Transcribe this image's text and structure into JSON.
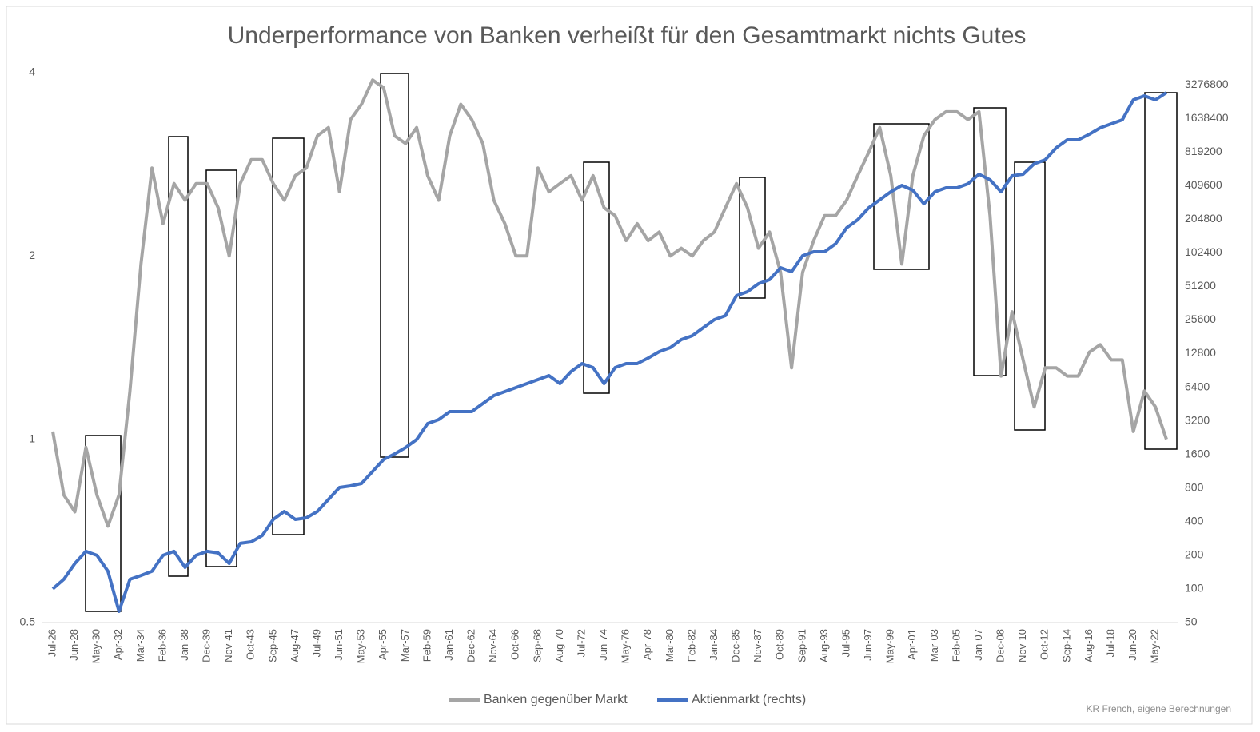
{
  "chart_data": {
    "type": "line",
    "title": "Underperformance von Banken verheißt für den Gesamtmarkt nichts Gutes",
    "source": "KR French, eigene Berechnungen",
    "log_scale": true,
    "grid": false,
    "categories": [
      "Jul-26",
      null,
      "Jun-28",
      null,
      "May-30",
      null,
      "Apr-32",
      null,
      "Mar-34",
      null,
      "Feb-36",
      null,
      "Jan-38",
      null,
      "Dec-39",
      null,
      "Nov-41",
      null,
      "Oct-43",
      null,
      "Sep-45",
      null,
      "Aug-47",
      null,
      "Jul-49",
      null,
      "Jun-51",
      null,
      "May-53",
      null,
      "Apr-55",
      null,
      "Mar-57",
      null,
      "Feb-59",
      null,
      "Jan-61",
      null,
      "Dec-62",
      null,
      "Nov-64",
      null,
      "Oct-66",
      null,
      "Sep-68",
      null,
      "Aug-70",
      null,
      "Jul-72",
      null,
      "Jun-74",
      null,
      "May-76",
      null,
      "Apr-78",
      null,
      "Mar-80",
      null,
      "Feb-82",
      null,
      "Jan-84",
      null,
      "Dec-85",
      null,
      "Nov-87",
      null,
      "Oct-89",
      null,
      "Sep-91",
      null,
      "Aug-93",
      null,
      "Jul-95",
      null,
      "Jun-97",
      null,
      "May-99",
      null,
      "Apr-01",
      null,
      "Mar-03",
      null,
      "Feb-05",
      null,
      "Jan-07",
      null,
      "Dec-08",
      null,
      "Nov-10",
      null,
      "Oct-12",
      null,
      "Sep-14",
      null,
      "Aug-16",
      null,
      "Jul-18",
      null,
      "Jun-20",
      null,
      "May-22",
      null
    ],
    "series": [
      {
        "name": "Banken gegenüber Markt",
        "color": "#a5a5a5",
        "axis": "y",
        "values": [
          1.03,
          0.81,
          0.76,
          0.97,
          0.81,
          0.72,
          0.81,
          1.2,
          1.94,
          2.79,
          2.26,
          2.63,
          2.47,
          2.63,
          2.63,
          2.4,
          2.0,
          2.63,
          2.88,
          2.88,
          2.63,
          2.47,
          2.71,
          2.79,
          3.15,
          3.25,
          2.55,
          3.35,
          3.55,
          3.89,
          3.78,
          3.15,
          3.06,
          3.25,
          2.71,
          2.47,
          3.15,
          3.55,
          3.35,
          3.06,
          2.47,
          2.26,
          2.0,
          2.0,
          2.79,
          2.55,
          2.63,
          2.71,
          2.47,
          2.71,
          2.4,
          2.33,
          2.12,
          2.26,
          2.12,
          2.19,
          2.0,
          2.06,
          2.0,
          2.12,
          2.19,
          2.4,
          2.63,
          2.4,
          2.06,
          2.19,
          1.88,
          1.31,
          1.88,
          2.12,
          2.33,
          2.33,
          2.47,
          2.71,
          2.96,
          3.25,
          2.71,
          1.94,
          2.71,
          3.15,
          3.35,
          3.45,
          3.45,
          3.35,
          3.45,
          2.33,
          1.27,
          1.62,
          1.35,
          1.13,
          1.31,
          1.31,
          1.27,
          1.27,
          1.39,
          1.43,
          1.35,
          1.35,
          1.03,
          1.2,
          1.13,
          1.0
        ]
      },
      {
        "name": "Aktienmarkt (rechts)",
        "color": "#4472c4",
        "axis": "y2",
        "values": [
          100,
          122,
          169,
          217,
          200,
          144,
          63,
          122,
          132,
          144,
          200,
          217,
          156,
          200,
          217,
          210,
          169,
          256,
          264,
          301,
          419,
          494,
          419,
          433,
          494,
          633,
          810,
          837,
          880,
          1127,
          1442,
          1619,
          1847,
          2178,
          3027,
          3288,
          3877,
          3877,
          3877,
          4572,
          5390,
          5850,
          6357,
          6902,
          7500,
          8140,
          6902,
          8840,
          10420,
          9590,
          6902,
          9590,
          10420,
          10420,
          11700,
          13350,
          14500,
          17090,
          18540,
          21870,
          25800,
          28020,
          42290,
          45900,
          54150,
          58800,
          75300,
          69300,
          96400,
          104700,
          104700,
          123450,
          171600,
          202400,
          259150,
          305500,
          360200,
          411000,
          372200,
          281350,
          360200,
          391150,
          391150,
          424850,
          517700,
          461500,
          360200,
          500800,
          517700,
          641500,
          696500,
          892000,
          1051500,
          1051500,
          1180500,
          1346500,
          1462500,
          1588000,
          2397000,
          2603500,
          2397000,
          2781000
        ]
      }
    ],
    "ylim": [
      0.5,
      4
    ],
    "yticks": [
      0.5,
      1,
      2,
      4
    ],
    "y2lim": [
      50,
      4200000
    ],
    "y2ticks": [
      50,
      100,
      200,
      400,
      800,
      1600,
      3200,
      6400,
      12800,
      25600,
      51200,
      102400,
      204800,
      409600,
      819200,
      1638400,
      3276800
    ],
    "legend": "bottom"
  }
}
